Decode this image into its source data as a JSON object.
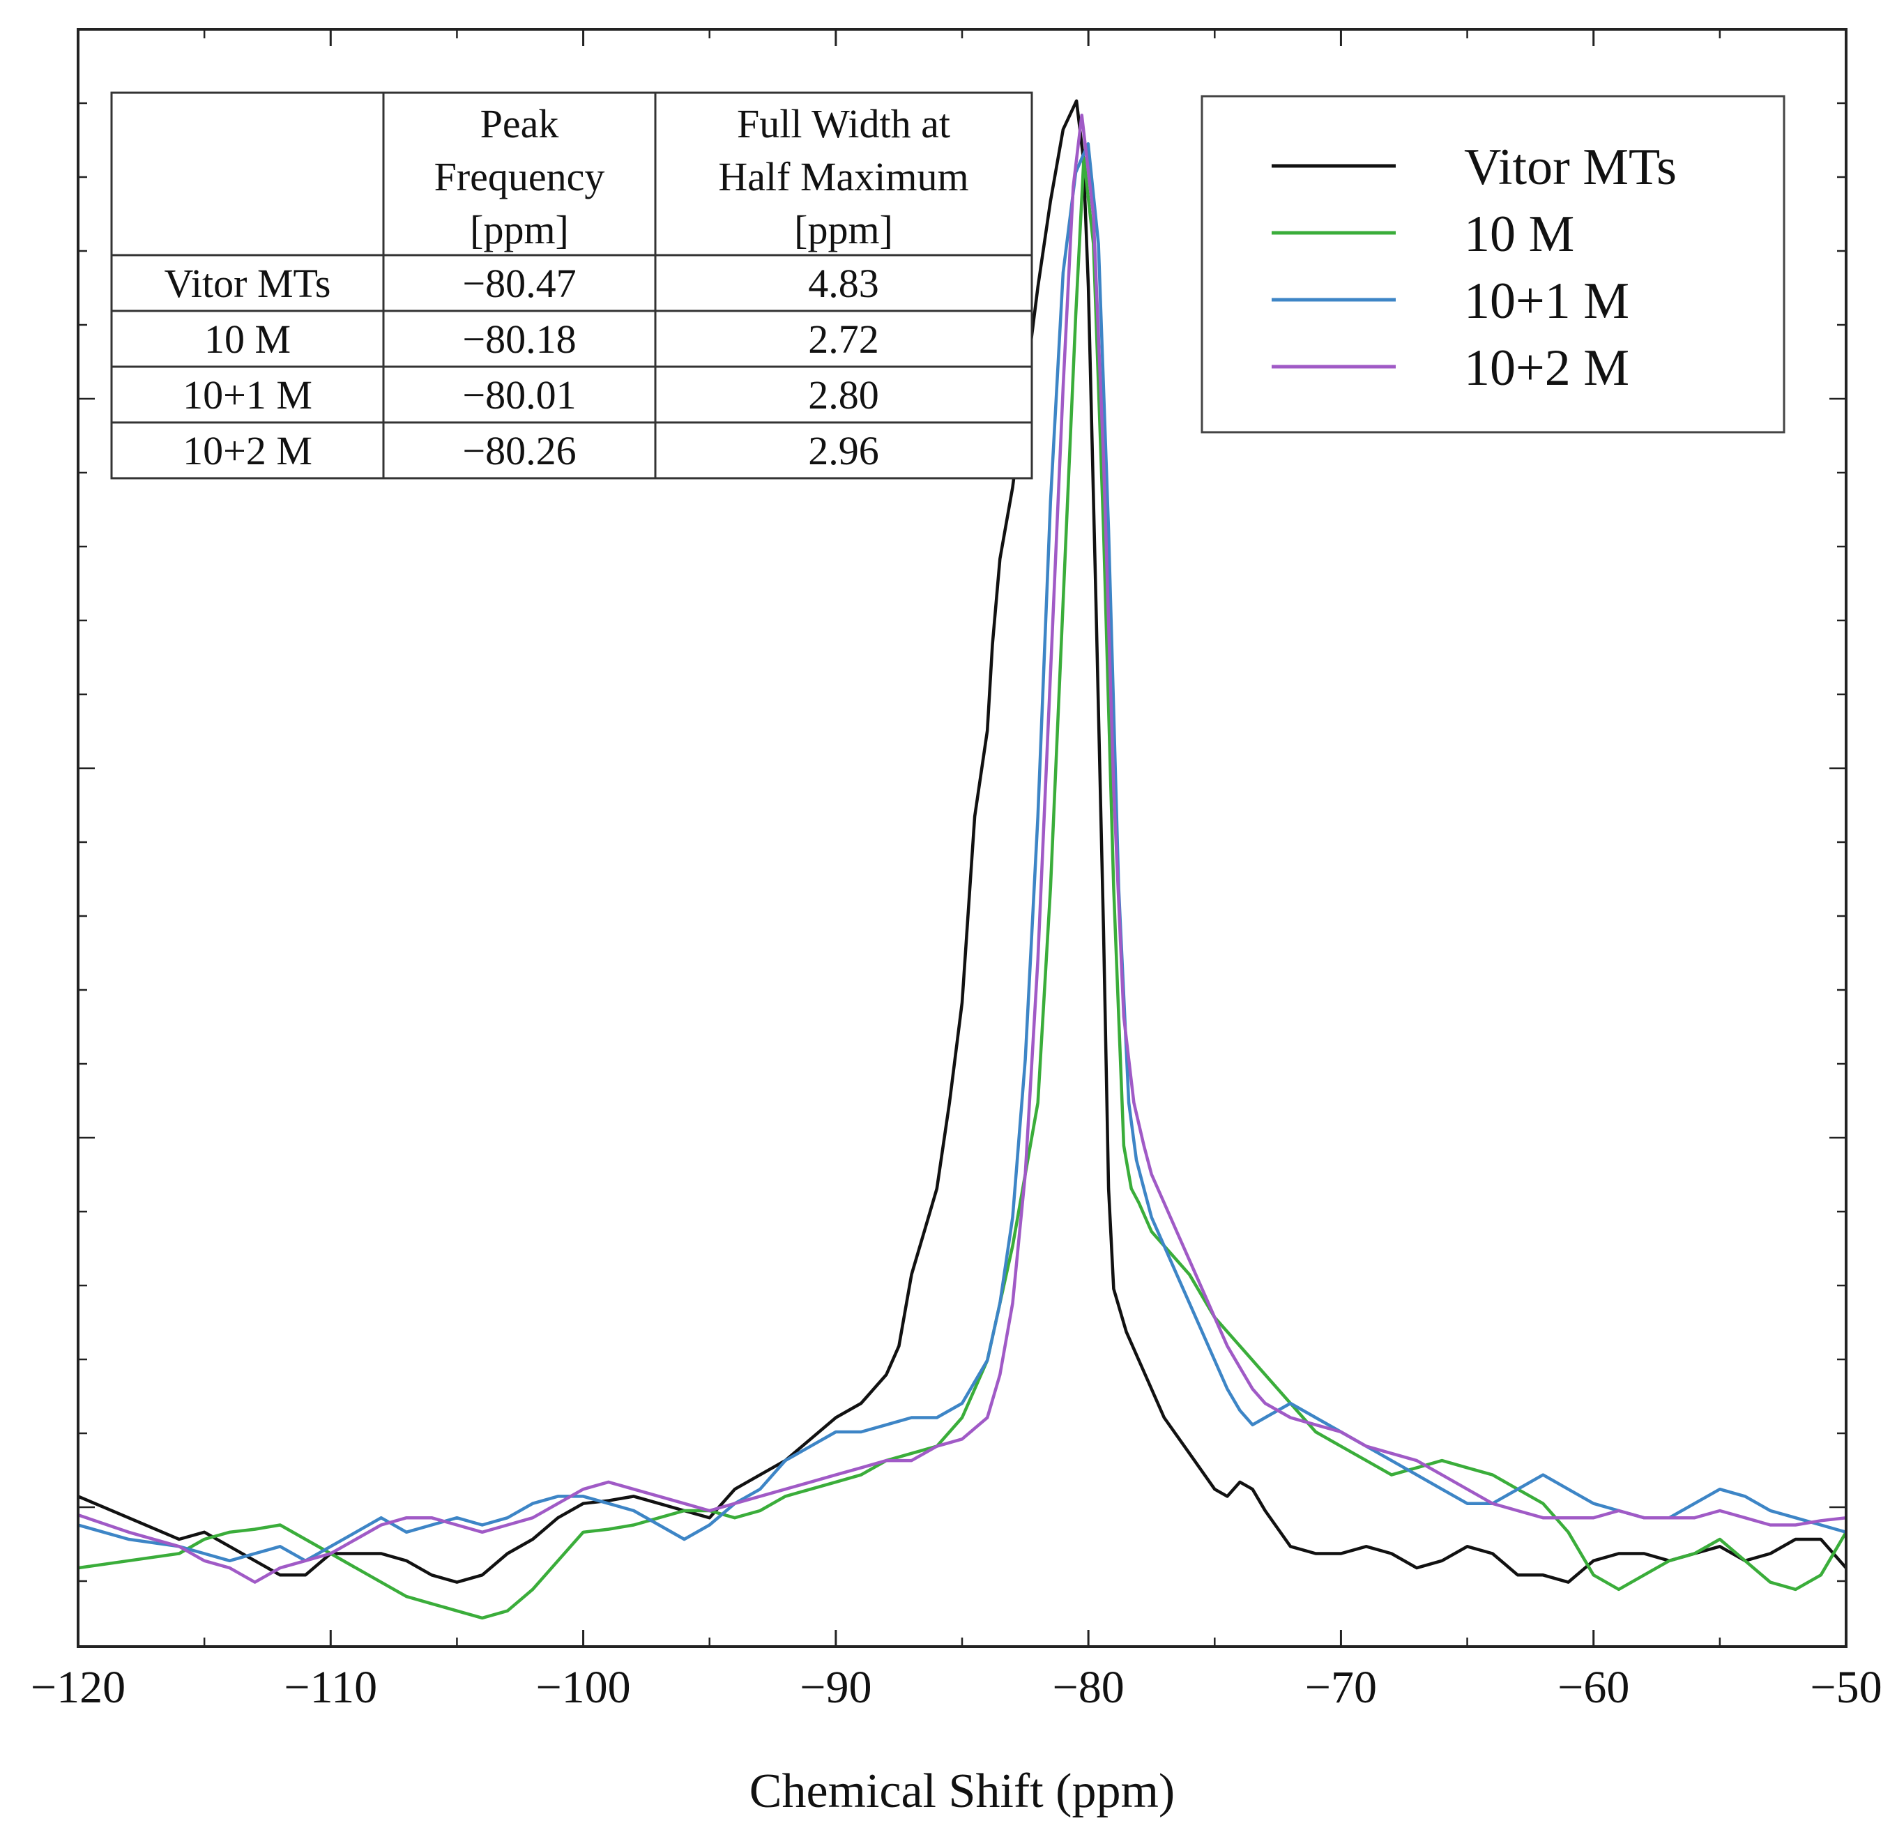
{
  "chart_data": {
    "type": "line",
    "xlabel": "Chemical Shift (ppm)",
    "ylabel": "",
    "xlim": [
      -120,
      -50
    ],
    "ylim": [
      -0.08,
      1.05
    ],
    "x_ticks": [
      -120,
      -110,
      -100,
      -90,
      -80,
      -70,
      -60,
      -50
    ],
    "x_tick_labels": [
      "−120",
      "−110",
      "−100",
      "−90",
      "−80",
      "−70",
      "−60",
      "−50"
    ],
    "y_tick_labels": [],
    "grid": false,
    "legend_position": "top-right",
    "series": [
      {
        "name": "Vitor MTs",
        "color": "#111111",
        "x": [
          -120,
          -118,
          -116,
          -115,
          -114,
          -113,
          -112,
          -111,
          -110,
          -109,
          -108,
          -107,
          -106,
          -105,
          -104,
          -103,
          -102,
          -101,
          -100,
          -99,
          -98,
          -97,
          -96,
          -95,
          -94,
          -93,
          -92,
          -91,
          -90,
          -89,
          -88,
          -87.5,
          -87,
          -86.5,
          -86,
          -85.5,
          -85,
          -84.5,
          -84,
          -83.8,
          -83.5,
          -83,
          -82.5,
          -82,
          -81.5,
          -81,
          -80.47,
          -80.2,
          -80,
          -79.7,
          -79.4,
          -79.2,
          -79,
          -78.5,
          -78,
          -77.5,
          -77,
          -76,
          -75,
          -74.5,
          -74,
          -73.5,
          -73,
          -72,
          -71,
          -70,
          -69,
          -68,
          -67,
          -66,
          -65,
          -64,
          -63,
          -62,
          -61,
          -60,
          -59,
          -58,
          -57,
          -56,
          -55,
          -54,
          -53,
          -52,
          -51,
          -50
        ],
        "y": [
          0.025,
          0.01,
          -0.005,
          0.0,
          -0.01,
          -0.02,
          -0.03,
          -0.03,
          -0.015,
          -0.015,
          -0.015,
          -0.02,
          -0.03,
          -0.035,
          -0.03,
          -0.015,
          -0.005,
          0.01,
          0.02,
          0.022,
          0.025,
          0.02,
          0.015,
          0.01,
          0.03,
          0.04,
          0.05,
          0.065,
          0.08,
          0.09,
          0.11,
          0.13,
          0.18,
          0.21,
          0.24,
          0.3,
          0.37,
          0.5,
          0.56,
          0.62,
          0.68,
          0.73,
          0.8,
          0.87,
          0.93,
          0.98,
          1.0,
          0.96,
          0.87,
          0.65,
          0.42,
          0.24,
          0.17,
          0.14,
          0.12,
          0.1,
          0.08,
          0.055,
          0.03,
          0.025,
          0.035,
          0.03,
          0.015,
          -0.01,
          -0.015,
          -0.015,
          -0.01,
          -0.015,
          -0.025,
          -0.02,
          -0.01,
          -0.015,
          -0.03,
          -0.03,
          -0.035,
          -0.02,
          -0.015,
          -0.015,
          -0.02,
          -0.015,
          -0.01,
          -0.02,
          -0.015,
          -0.005,
          -0.005,
          -0.025
        ]
      },
      {
        "name": "10 M",
        "color": "#3aad3a",
        "x": [
          -120,
          -118,
          -116,
          -115,
          -114,
          -113,
          -112,
          -111,
          -110,
          -109,
          -108,
          -107,
          -106,
          -105,
          -104,
          -103,
          -102,
          -101,
          -100,
          -99,
          -98,
          -97,
          -96,
          -95,
          -94,
          -93,
          -92,
          -91,
          -90,
          -89,
          -88,
          -87,
          -86,
          -85,
          -84,
          -83.5,
          -83,
          -82.5,
          -82,
          -81.5,
          -81,
          -80.5,
          -80.18,
          -79.8,
          -79.4,
          -79,
          -78.6,
          -78.3,
          -78,
          -77.5,
          -77,
          -76,
          -75,
          -74,
          -73,
          -72,
          -71,
          -70,
          -69,
          -68,
          -67,
          -66,
          -65,
          -64,
          -63,
          -62,
          -61,
          -60,
          -59,
          -58,
          -57,
          -56,
          -55,
          -54,
          -53,
          -52,
          -51,
          -50
        ],
        "y": [
          -0.025,
          -0.02,
          -0.015,
          -0.005,
          0.0,
          0.002,
          0.005,
          -0.005,
          -0.015,
          -0.025,
          -0.035,
          -0.045,
          -0.05,
          -0.055,
          -0.06,
          -0.055,
          -0.04,
          -0.02,
          0.0,
          0.002,
          0.005,
          0.01,
          0.015,
          0.015,
          0.01,
          0.015,
          0.025,
          0.03,
          0.035,
          0.04,
          0.05,
          0.055,
          0.06,
          0.08,
          0.12,
          0.16,
          0.2,
          0.25,
          0.3,
          0.45,
          0.65,
          0.85,
          0.96,
          0.9,
          0.7,
          0.45,
          0.27,
          0.24,
          0.23,
          0.21,
          0.2,
          0.18,
          0.15,
          0.13,
          0.11,
          0.09,
          0.07,
          0.06,
          0.05,
          0.04,
          0.045,
          0.05,
          0.045,
          0.04,
          0.03,
          0.02,
          0.0,
          -0.03,
          -0.04,
          -0.03,
          -0.02,
          -0.015,
          -0.005,
          -0.02,
          -0.035,
          -0.04,
          -0.03,
          0.0
        ]
      },
      {
        "name": "10+1 M",
        "color": "#3d85c6",
        "x": [
          -120,
          -118,
          -116,
          -115,
          -114,
          -113,
          -112,
          -111,
          -110,
          -109,
          -108,
          -107,
          -106,
          -105,
          -104,
          -103,
          -102,
          -101,
          -100,
          -99,
          -98,
          -97,
          -96,
          -95,
          -94,
          -93,
          -92,
          -91,
          -90,
          -89,
          -88,
          -87,
          -86,
          -85,
          -84,
          -83.5,
          -83,
          -82.5,
          -82,
          -81.5,
          -81,
          -80.5,
          -80.01,
          -79.6,
          -79.2,
          -78.8,
          -78.4,
          -78.1,
          -77.8,
          -77.5,
          -77,
          -76.5,
          -76,
          -75.5,
          -75,
          -74.5,
          -74,
          -73.5,
          -73,
          -72,
          -71,
          -70,
          -69,
          -68,
          -67,
          -66,
          -65,
          -64,
          -63,
          -62,
          -61,
          -60,
          -59,
          -58,
          -57,
          -56,
          -55,
          -54,
          -53,
          -52,
          -51,
          -50
        ],
        "y": [
          0.005,
          -0.005,
          -0.01,
          -0.015,
          -0.02,
          -0.015,
          -0.01,
          -0.02,
          -0.01,
          0.0,
          0.01,
          0.0,
          0.005,
          0.01,
          0.005,
          0.01,
          0.02,
          0.025,
          0.025,
          0.02,
          0.015,
          0.005,
          -0.005,
          0.005,
          0.02,
          0.03,
          0.05,
          0.06,
          0.07,
          0.07,
          0.075,
          0.08,
          0.08,
          0.09,
          0.12,
          0.16,
          0.22,
          0.33,
          0.5,
          0.72,
          0.88,
          0.95,
          0.97,
          0.9,
          0.7,
          0.45,
          0.3,
          0.26,
          0.24,
          0.22,
          0.2,
          0.18,
          0.16,
          0.14,
          0.12,
          0.1,
          0.085,
          0.075,
          0.08,
          0.09,
          0.08,
          0.07,
          0.06,
          0.05,
          0.04,
          0.03,
          0.02,
          0.02,
          0.03,
          0.04,
          0.03,
          0.02,
          0.015,
          0.01,
          0.01,
          0.02,
          0.03,
          0.025,
          0.015,
          0.01,
          0.005,
          0.0
        ]
      },
      {
        "name": "10+2 M",
        "color": "#a05ac6",
        "x": [
          -120,
          -118,
          -116,
          -115,
          -114,
          -113,
          -112,
          -111,
          -110,
          -109,
          -108,
          -107,
          -106,
          -105,
          -104,
          -103,
          -102,
          -101,
          -100,
          -99,
          -98,
          -97,
          -96,
          -95,
          -94,
          -93,
          -92,
          -91,
          -90,
          -89,
          -88,
          -87,
          -86,
          -85,
          -84,
          -83.5,
          -83,
          -82.5,
          -82,
          -81.5,
          -81,
          -80.6,
          -80.26,
          -79.8,
          -79.4,
          -79,
          -78.6,
          -78.2,
          -77.8,
          -77.5,
          -77,
          -76.5,
          -76,
          -75.5,
          -75,
          -74.5,
          -74,
          -73.5,
          -73,
          -72,
          -71,
          -70,
          -69,
          -68,
          -67,
          -66,
          -65,
          -64,
          -63,
          -62,
          -61,
          -60,
          -59,
          -58,
          -57,
          -56,
          -55,
          -54,
          -53,
          -52,
          -51,
          -50
        ],
        "y": [
          0.012,
          0.0,
          -0.01,
          -0.02,
          -0.025,
          -0.035,
          -0.025,
          -0.02,
          -0.015,
          -0.005,
          0.005,
          0.01,
          0.01,
          0.005,
          0.0,
          0.005,
          0.01,
          0.02,
          0.03,
          0.035,
          0.03,
          0.025,
          0.02,
          0.015,
          0.02,
          0.025,
          0.03,
          0.035,
          0.04,
          0.045,
          0.05,
          0.05,
          0.06,
          0.065,
          0.08,
          0.11,
          0.16,
          0.25,
          0.4,
          0.6,
          0.8,
          0.94,
          0.99,
          0.92,
          0.75,
          0.52,
          0.36,
          0.3,
          0.27,
          0.25,
          0.23,
          0.21,
          0.19,
          0.17,
          0.15,
          0.13,
          0.115,
          0.1,
          0.09,
          0.08,
          0.075,
          0.07,
          0.06,
          0.055,
          0.05,
          0.04,
          0.03,
          0.02,
          0.015,
          0.01,
          0.01,
          0.01,
          0.015,
          0.01,
          0.01,
          0.01,
          0.015,
          0.01,
          0.005,
          0.005,
          0.008,
          0.01
        ]
      }
    ],
    "table": {
      "headers": [
        [
          "",
          "",
          ""
        ],
        [
          "Peak",
          "Frequency",
          "[ppm]"
        ],
        [
          "Full Width at",
          "Half Maximum",
          "[ppm]"
        ]
      ],
      "rows": [
        [
          "Vitor MTs",
          "−80.47",
          "4.83"
        ],
        [
          "10 M",
          "−80.18",
          "2.72"
        ],
        [
          "10+1 M",
          "−80.01",
          "2.80"
        ],
        [
          "10+2 M",
          "−80.26",
          "2.96"
        ]
      ]
    }
  }
}
